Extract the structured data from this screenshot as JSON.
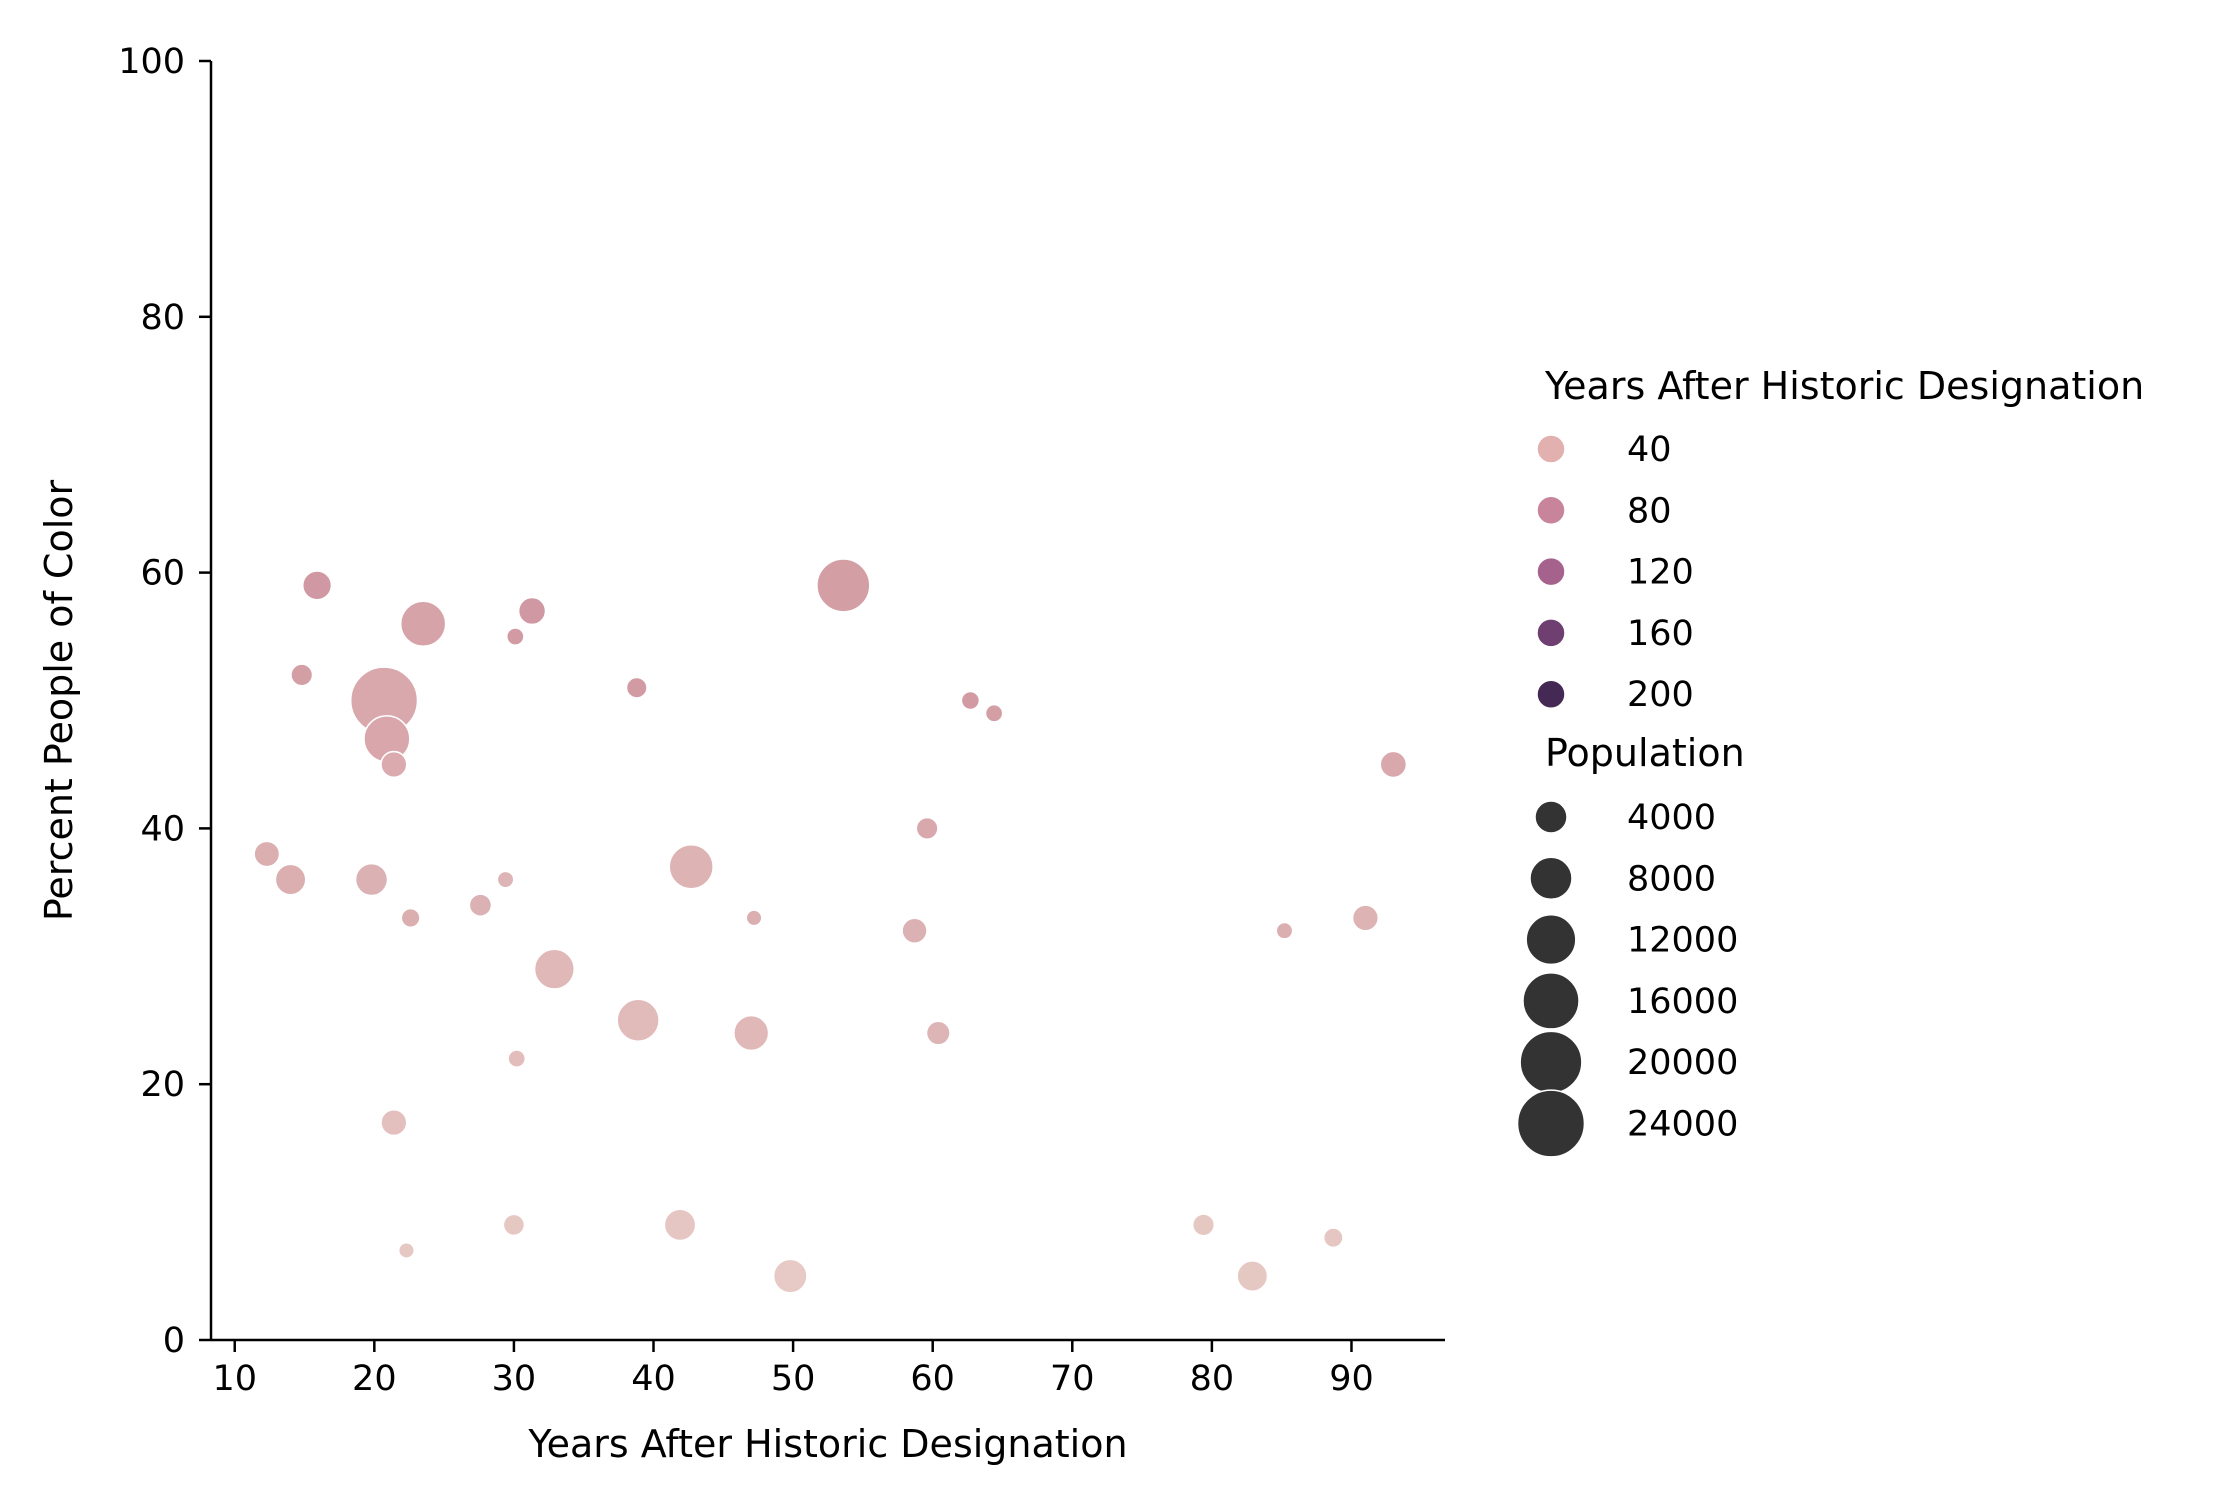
{
  "chart_data": {
    "type": "scatter",
    "title": "",
    "xlabel": "Years After Historic Designation",
    "ylabel": "Percent People of Color",
    "xlim": [
      8.3,
      96.7
    ],
    "ylim": [
      0,
      100
    ],
    "xticks": [
      10,
      20,
      30,
      40,
      50,
      60,
      70,
      80,
      90
    ],
    "yticks": [
      0,
      20,
      40,
      60,
      80,
      100
    ],
    "grid": false,
    "legend_position": "right",
    "hue_variable": "Years After Historic Designation",
    "size_variable": "Population",
    "hue_palette": {
      "domain": [
        20,
        220
      ],
      "colors": [
        "#ebd2cb",
        "#d49ea5",
        "#a65f8c",
        "#6b3b6c",
        "#2d1e3e"
      ]
    },
    "legend": {
      "hue_title": "Years After Historic Designation",
      "hue_entries": [
        {
          "label": "40",
          "color": "#e3b0b0"
        },
        {
          "label": "80",
          "color": "#c8849a"
        },
        {
          "label": "120",
          "color": "#a4628c"
        },
        {
          "label": "160",
          "color": "#6e3f70"
        },
        {
          "label": "200",
          "color": "#432953"
        }
      ],
      "size_title": "Population",
      "size_entries": [
        {
          "label": "4000",
          "value": 4000
        },
        {
          "label": "8000",
          "value": 8000
        },
        {
          "label": "12000",
          "value": 12000
        },
        {
          "label": "16000",
          "value": 16000
        },
        {
          "label": "20000",
          "value": 20000
        },
        {
          "label": "24000",
          "value": 24000
        }
      ],
      "marker_color": "#333333"
    },
    "points": [
      {
        "x": 20.7,
        "y": 50,
        "population": 24000,
        "hue": 60
      },
      {
        "x": 53.6,
        "y": 59,
        "population": 14000,
        "hue": 70
      },
      {
        "x": 23.5,
        "y": 56,
        "population": 9500,
        "hue": 65
      },
      {
        "x": 20.9,
        "y": 47,
        "population": 10000,
        "hue": 62
      },
      {
        "x": 15.9,
        "y": 59,
        "population": 3000,
        "hue": 75
      },
      {
        "x": 31.3,
        "y": 57,
        "population": 2500,
        "hue": 75
      },
      {
        "x": 14.8,
        "y": 52,
        "population": 1300,
        "hue": 70
      },
      {
        "x": 30.1,
        "y": 55,
        "population": 600,
        "hue": 72
      },
      {
        "x": 38.8,
        "y": 51,
        "population": 1100,
        "hue": 72
      },
      {
        "x": 62.7,
        "y": 50,
        "population": 700,
        "hue": 72
      },
      {
        "x": 64.4,
        "y": 49,
        "population": 600,
        "hue": 70
      },
      {
        "x": 21.4,
        "y": 45,
        "population": 2200,
        "hue": 58
      },
      {
        "x": 93.0,
        "y": 45,
        "population": 2300,
        "hue": 60
      },
      {
        "x": 59.6,
        "y": 40,
        "population": 1300,
        "hue": 60
      },
      {
        "x": 12.3,
        "y": 38,
        "population": 2100,
        "hue": 55
      },
      {
        "x": 14.0,
        "y": 36,
        "population": 3500,
        "hue": 55
      },
      {
        "x": 19.8,
        "y": 36,
        "population": 4000,
        "hue": 52
      },
      {
        "x": 42.7,
        "y": 37,
        "population": 9000,
        "hue": 50
      },
      {
        "x": 29.4,
        "y": 36,
        "population": 500,
        "hue": 48
      },
      {
        "x": 22.6,
        "y": 33,
        "population": 800,
        "hue": 55
      },
      {
        "x": 27.6,
        "y": 34,
        "population": 1400,
        "hue": 52
      },
      {
        "x": 47.2,
        "y": 33,
        "population": 400,
        "hue": 55
      },
      {
        "x": 58.7,
        "y": 32,
        "population": 2000,
        "hue": 52
      },
      {
        "x": 85.2,
        "y": 32,
        "population": 500,
        "hue": 55
      },
      {
        "x": 91.0,
        "y": 33,
        "population": 2200,
        "hue": 50
      },
      {
        "x": 32.9,
        "y": 29,
        "population": 7000,
        "hue": 45
      },
      {
        "x": 38.9,
        "y": 25,
        "population": 8000,
        "hue": 42
      },
      {
        "x": 47.0,
        "y": 24,
        "population": 5000,
        "hue": 45
      },
      {
        "x": 60.4,
        "y": 24,
        "population": 1700,
        "hue": 48
      },
      {
        "x": 30.2,
        "y": 22,
        "population": 600,
        "hue": 40
      },
      {
        "x": 21.4,
        "y": 17,
        "population": 2200,
        "hue": 38
      },
      {
        "x": 30.0,
        "y": 9,
        "population": 1200,
        "hue": 30
      },
      {
        "x": 41.9,
        "y": 9,
        "population": 3800,
        "hue": 32
      },
      {
        "x": 79.4,
        "y": 9,
        "population": 1300,
        "hue": 30
      },
      {
        "x": 88.7,
        "y": 8,
        "population": 900,
        "hue": 32
      },
      {
        "x": 22.3,
        "y": 7,
        "population": 400,
        "hue": 30
      },
      {
        "x": 49.8,
        "y": 5,
        "population": 4500,
        "hue": 28
      },
      {
        "x": 82.9,
        "y": 5,
        "population": 3500,
        "hue": 30
      }
    ]
  }
}
